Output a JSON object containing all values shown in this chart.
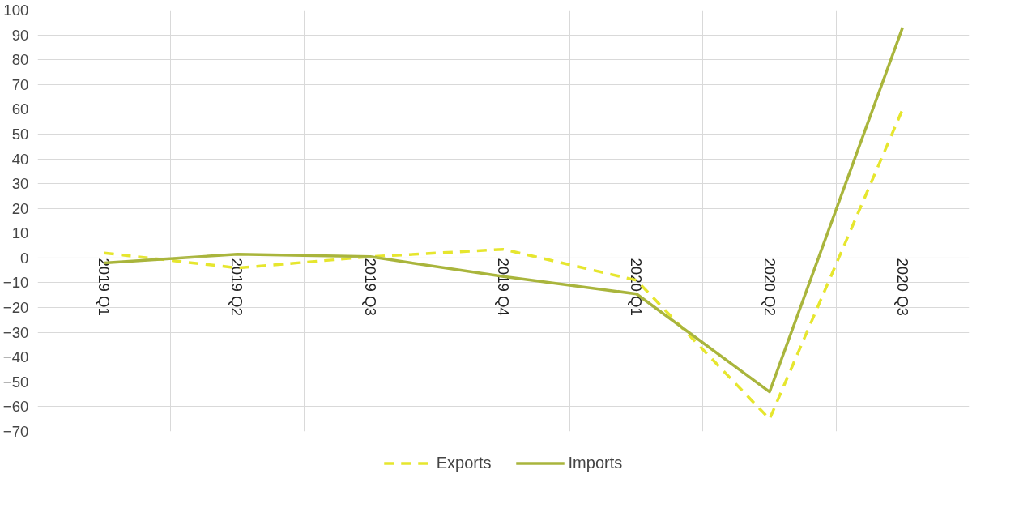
{
  "chart_data": {
    "type": "line",
    "categories": [
      "2019 Q1",
      "2019 Q2",
      "2019 Q3",
      "2019 Q4",
      "2020 Q1",
      "2020 Q2",
      "2020 Q3"
    ],
    "series": [
      {
        "name": "Exports",
        "color": "#e6e62e",
        "line_style": "dashed",
        "values": [
          2,
          -4,
          0.5,
          3.5,
          -9,
          -65,
          60
        ]
      },
      {
        "name": "Imports",
        "color": "#a9b53c",
        "line_style": "solid",
        "values": [
          -2,
          1.5,
          0.5,
          -7.5,
          -14.5,
          -54,
          93
        ]
      }
    ],
    "ylim": [
      -70,
      100
    ],
    "yticks": [
      -70,
      -60,
      -50,
      -40,
      -30,
      -20,
      -10,
      0,
      10,
      20,
      30,
      40,
      50,
      60,
      70,
      80,
      90,
      100
    ],
    "grid": true,
    "legend": "bottom",
    "marker": "none"
  }
}
